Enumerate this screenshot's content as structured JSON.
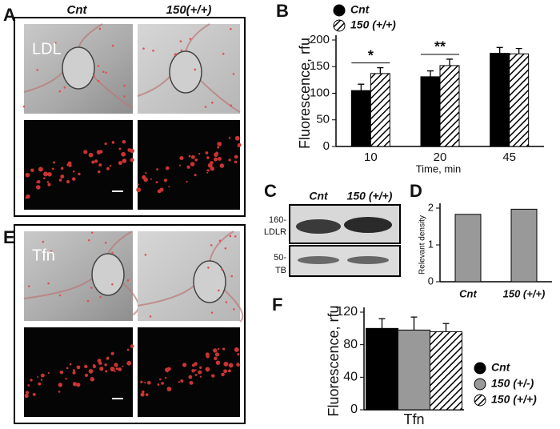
{
  "panels": {
    "A": {
      "letter": "A",
      "columns": [
        "Cnt",
        "150(+/+)"
      ],
      "stain": "LDL"
    },
    "E": {
      "letter": "E",
      "stain": "Tfn"
    },
    "C": {
      "letter": "C",
      "columns": [
        "Cnt",
        "150 (+/+)"
      ],
      "rows": [
        {
          "size": "160-",
          "label": "LDLR"
        },
        {
          "size": "50-",
          "label": "TB"
        }
      ]
    }
  },
  "chart_data": [
    {
      "type": "bar",
      "panel": "B",
      "categories": [
        "10",
        "20",
        "45"
      ],
      "x_label": "Time, min",
      "y_label": "Fluorescence, rfu",
      "series": [
        {
          "name": "Cnt",
          "color": "#000000",
          "hatch": false,
          "values": [
            105,
            131,
            175
          ],
          "errors": [
            12,
            11,
            11
          ]
        },
        {
          "name": "150 (+/+)",
          "color": "#ffffff",
          "hatch": true,
          "values": [
            137,
            152,
            174
          ],
          "errors": [
            11,
            12,
            10
          ]
        }
      ],
      "annotations": [
        "*",
        "**"
      ],
      "ylim": [
        0,
        200
      ],
      "yticks": [
        0,
        50,
        100,
        150,
        200
      ]
    },
    {
      "type": "bar",
      "panel": "D",
      "categories": [
        "Cnt",
        "150 (+/+)"
      ],
      "y_label": "Relevant density",
      "series": [
        {
          "color": "#999999",
          "hatch": false,
          "values": [
            1.83,
            1.97
          ]
        }
      ],
      "ylim": [
        0,
        2
      ],
      "yticks": [
        0,
        1,
        2
      ]
    },
    {
      "type": "bar",
      "panel": "F",
      "categories": [
        "Tfn"
      ],
      "y_label": "Fluorescence, rfu",
      "series": [
        {
          "name": "Cnt",
          "color": "#000000",
          "hatch": false,
          "values": [
            100
          ],
          "errors": [
            12
          ]
        },
        {
          "name": "150 (+/-)",
          "color": "#999999",
          "hatch": false,
          "values": [
            98
          ],
          "errors": [
            16
          ]
        },
        {
          "name": "150 (+/+)",
          "color": "#ffffff",
          "hatch": true,
          "values": [
            96
          ],
          "errors": [
            10
          ]
        }
      ],
      "ylim": [
        0,
        120
      ],
      "yticks": [
        0,
        40,
        80,
        120
      ]
    }
  ]
}
